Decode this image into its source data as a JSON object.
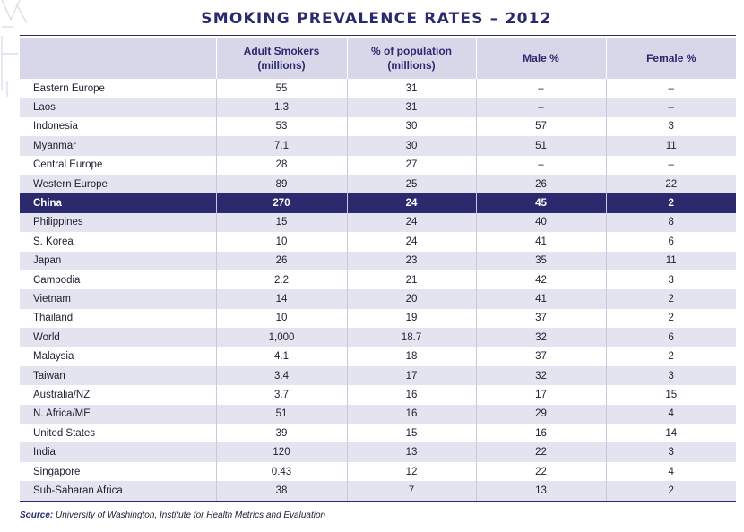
{
  "title": "SMOKING PREVALENCE RATES – 2012",
  "columns": [
    "",
    "Adult Smokers\n(millions)",
    "% of population\n(millions)",
    "Male %",
    "Female %"
  ],
  "rows": [
    {
      "region": "Eastern Europe",
      "adult_smokers": "55",
      "pct_population": "31",
      "male": "–",
      "female": "–"
    },
    {
      "region": "Laos",
      "adult_smokers": "1.3",
      "pct_population": "31",
      "male": "–",
      "female": "–"
    },
    {
      "region": "Indonesia",
      "adult_smokers": "53",
      "pct_population": "30",
      "male": "57",
      "female": "3"
    },
    {
      "region": "Myanmar",
      "adult_smokers": "7.1",
      "pct_population": "30",
      "male": "51",
      "female": "11"
    },
    {
      "region": "Central Europe",
      "adult_smokers": "28",
      "pct_population": "27",
      "male": "–",
      "female": "–"
    },
    {
      "region": "Western Europe",
      "adult_smokers": "89",
      "pct_population": "25",
      "male": "26",
      "female": "22"
    },
    {
      "region": "China",
      "adult_smokers": "270",
      "pct_population": "24",
      "male": "45",
      "female": "2",
      "highlight": true
    },
    {
      "region": "Philippines",
      "adult_smokers": "15",
      "pct_population": "24",
      "male": "40",
      "female": "8"
    },
    {
      "region": "S. Korea",
      "adult_smokers": "10",
      "pct_population": "24",
      "male": "41",
      "female": "6"
    },
    {
      "region": "Japan",
      "adult_smokers": "26",
      "pct_population": "23",
      "male": "35",
      "female": "11"
    },
    {
      "region": "Cambodia",
      "adult_smokers": "2.2",
      "pct_population": "21",
      "male": "42",
      "female": "3"
    },
    {
      "region": "Vietnam",
      "adult_smokers": "14",
      "pct_population": "20",
      "male": "41",
      "female": "2"
    },
    {
      "region": "Thailand",
      "adult_smokers": "10",
      "pct_population": "19",
      "male": "37",
      "female": "2"
    },
    {
      "region": "World",
      "adult_smokers": "1,000",
      "pct_population": "18.7",
      "male": "32",
      "female": "6"
    },
    {
      "region": "Malaysia",
      "adult_smokers": "4.1",
      "pct_population": "18",
      "male": "37",
      "female": "2"
    },
    {
      "region": "Taiwan",
      "adult_smokers": "3.4",
      "pct_population": "17",
      "male": "32",
      "female": "3"
    },
    {
      "region": "Australia/NZ",
      "adult_smokers": "3.7",
      "pct_population": "16",
      "male": "17",
      "female": "15"
    },
    {
      "region": "N. Africa/ME",
      "adult_smokers": "51",
      "pct_population": "16",
      "male": "29",
      "female": "4"
    },
    {
      "region": "United States",
      "adult_smokers": "39",
      "pct_population": "15",
      "male": "16",
      "female": "14"
    },
    {
      "region": "India",
      "adult_smokers": "120",
      "pct_population": "13",
      "male": "22",
      "female": "3"
    },
    {
      "region": "Singapore",
      "adult_smokers": "0.43",
      "pct_population": "12",
      "male": "22",
      "female": "4"
    },
    {
      "region": "Sub-Saharan Africa",
      "adult_smokers": "38",
      "pct_population": "7",
      "male": "13",
      "female": "2"
    }
  ],
  "source": {
    "label": "Source:",
    "text": " University of Washington, Institute for Health Metrics and Evaluation"
  },
  "colors": {
    "accent": "#2b2a6e",
    "header_bg": "#d8d7e9",
    "stripe": "#e4e3f0"
  }
}
